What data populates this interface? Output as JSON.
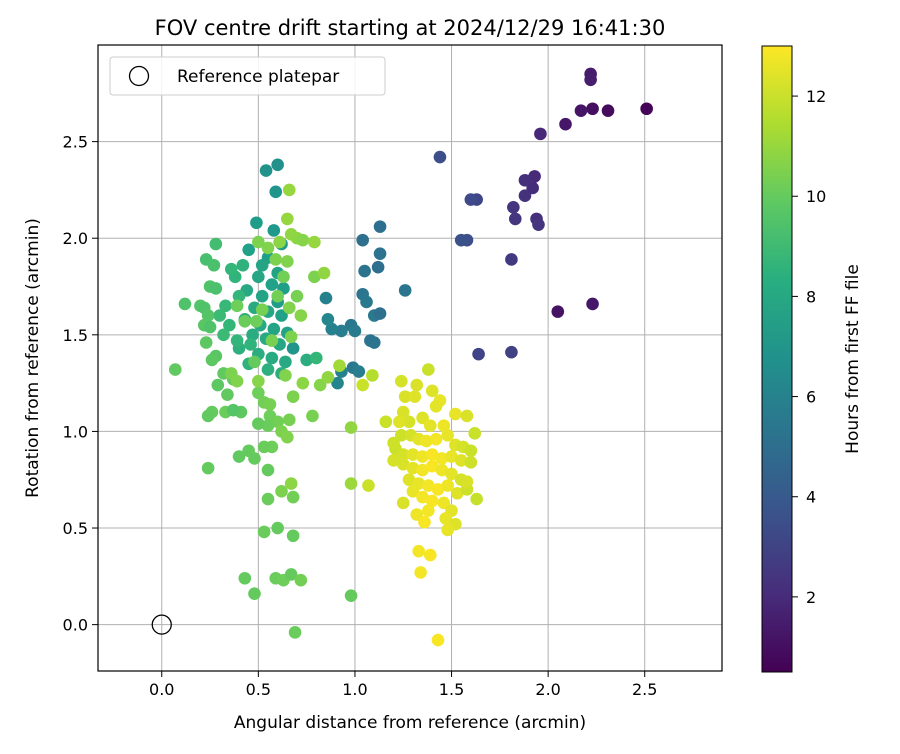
{
  "chart_data": {
    "type": "scatter",
    "title": "FOV centre drift starting at 2024/12/29 16:41:30",
    "xlabel": "Angular distance from reference (arcmin)",
    "ylabel": "Rotation from reference (arcmin)",
    "xlim": [
      -0.33,
      2.9
    ],
    "ylim": [
      -0.24,
      3.0
    ],
    "x_ticks": [
      0.0,
      0.5,
      1.0,
      1.5,
      2.0,
      2.5
    ],
    "x_tick_labels": [
      "0.0",
      "0.5",
      "1.0",
      "1.5",
      "2.0",
      "2.5"
    ],
    "y_ticks": [
      0.0,
      0.5,
      1.0,
      1.5,
      2.0,
      2.5
    ],
    "y_tick_labels": [
      "0.0",
      "0.5",
      "1.0",
      "1.5",
      "2.0",
      "2.5"
    ],
    "grid": true,
    "legend": {
      "placement": "top-left",
      "entries": [
        "Reference platepar"
      ]
    },
    "reference_point": {
      "x": 0.0,
      "y": 0.0,
      "marker": "hollow-circle"
    },
    "colorbar": {
      "label": "Hours from first FF file",
      "colormap": "viridis",
      "range": [
        0.5,
        13.0
      ],
      "ticks": [
        2,
        4,
        6,
        8,
        10,
        12
      ],
      "tick_labels": [
        "2",
        "4",
        "6",
        "8",
        "10",
        "12"
      ]
    },
    "points": [
      [
        2.51,
        2.67,
        0.6
      ],
      [
        2.31,
        2.66,
        0.9
      ],
      [
        2.23,
        2.67,
        1.0
      ],
      [
        2.17,
        2.66,
        1.2
      ],
      [
        2.22,
        2.85,
        1.4
      ],
      [
        2.22,
        2.82,
        1.5
      ],
      [
        2.09,
        2.59,
        1.3
      ],
      [
        2.05,
        1.62,
        1.1
      ],
      [
        2.23,
        1.66,
        1.3
      ],
      [
        1.96,
        2.54,
        1.9
      ],
      [
        1.93,
        2.32,
        2.0
      ],
      [
        1.92,
        2.26,
        2.1
      ],
      [
        1.88,
        2.3,
        2.2
      ],
      [
        1.88,
        2.22,
        2.3
      ],
      [
        1.82,
        2.16,
        2.4
      ],
      [
        1.83,
        2.1,
        2.5
      ],
      [
        1.94,
        2.1,
        2.2
      ],
      [
        1.95,
        2.07,
        2.4
      ],
      [
        1.81,
        1.89,
        2.6
      ],
      [
        1.81,
        1.41,
        2.9
      ],
      [
        1.64,
        1.4,
        3.0
      ],
      [
        1.63,
        2.2,
        3.1
      ],
      [
        1.6,
        2.2,
        3.3
      ],
      [
        1.58,
        1.99,
        3.5
      ],
      [
        1.55,
        1.99,
        3.6
      ],
      [
        1.44,
        2.42,
        3.5
      ],
      [
        1.13,
        2.06,
        5.0
      ],
      [
        1.13,
        1.92,
        5.2
      ],
      [
        1.12,
        1.85,
        5.0
      ],
      [
        1.04,
        1.99,
        5.1
      ],
      [
        1.05,
        1.83,
        5.3
      ],
      [
        1.04,
        1.71,
        5.4
      ],
      [
        1.06,
        1.67,
        5.5
      ],
      [
        1.1,
        1.6,
        5.6
      ],
      [
        1.13,
        1.61,
        5.1
      ],
      [
        1.26,
        1.73,
        5.4
      ],
      [
        1.08,
        1.47,
        5.2
      ],
      [
        1.1,
        1.46,
        5.3
      ],
      [
        0.98,
        1.55,
        5.5
      ],
      [
        1.0,
        1.52,
        5.7
      ],
      [
        0.93,
        1.52,
        5.8
      ],
      [
        0.88,
        1.53,
        6.0
      ],
      [
        0.85,
        1.69,
        6.0
      ],
      [
        0.86,
        1.58,
        6.3
      ],
      [
        0.99,
        1.33,
        5.5
      ],
      [
        1.02,
        1.31,
        5.8
      ],
      [
        0.93,
        1.31,
        6.0
      ],
      [
        0.91,
        1.25,
        6.2
      ],
      [
        0.6,
        2.38,
        6.8
      ],
      [
        0.54,
        2.35,
        6.9
      ],
      [
        0.59,
        2.24,
        7.0
      ],
      [
        0.49,
        2.08,
        7.4
      ],
      [
        0.58,
        2.04,
        7.2
      ],
      [
        0.62,
        1.97,
        7.3
      ],
      [
        0.45,
        1.94,
        7.6
      ],
      [
        0.55,
        1.9,
        7.5
      ],
      [
        0.52,
        1.86,
        7.8
      ],
      [
        0.6,
        1.82,
        7.7
      ],
      [
        0.5,
        1.8,
        7.9
      ],
      [
        0.57,
        1.76,
        7.6
      ],
      [
        0.63,
        1.74,
        7.5
      ],
      [
        0.44,
        1.73,
        8.0
      ],
      [
        0.52,
        1.7,
        7.8
      ],
      [
        0.6,
        1.67,
        7.4
      ],
      [
        0.48,
        1.64,
        8.1
      ],
      [
        0.55,
        1.62,
        7.9
      ],
      [
        0.62,
        1.6,
        7.6
      ],
      [
        0.43,
        1.58,
        8.3
      ],
      [
        0.51,
        1.55,
        8.0
      ],
      [
        0.58,
        1.53,
        7.8
      ],
      [
        0.65,
        1.51,
        7.7
      ],
      [
        0.47,
        1.5,
        8.2
      ],
      [
        0.54,
        1.48,
        8.0
      ],
      [
        0.61,
        1.45,
        7.9
      ],
      [
        0.68,
        1.43,
        7.0
      ],
      [
        0.4,
        1.43,
        8.4
      ],
      [
        0.5,
        1.4,
        8.3
      ],
      [
        0.57,
        1.38,
        8.1
      ],
      [
        0.64,
        1.36,
        8.0
      ],
      [
        0.45,
        1.35,
        8.5
      ],
      [
        0.55,
        1.32,
        8.4
      ],
      [
        0.62,
        1.3,
        8.3
      ],
      [
        0.38,
        1.8,
        8.6
      ],
      [
        0.4,
        1.7,
        8.7
      ],
      [
        0.42,
        1.86,
        8.5
      ],
      [
        0.36,
        1.84,
        8.8
      ],
      [
        0.33,
        1.65,
        8.9
      ],
      [
        0.3,
        1.6,
        9.0
      ],
      [
        0.32,
        1.5,
        9.0
      ],
      [
        0.35,
        1.55,
        8.8
      ],
      [
        0.39,
        1.47,
        8.7
      ],
      [
        0.46,
        1.45,
        8.6
      ],
      [
        0.75,
        1.37,
        8.3
      ],
      [
        0.8,
        1.38,
        8.8
      ],
      [
        0.28,
        1.97,
        9.2
      ],
      [
        0.23,
        1.89,
        9.3
      ],
      [
        0.27,
        1.86,
        9.4
      ],
      [
        0.25,
        1.75,
        9.5
      ],
      [
        0.28,
        1.74,
        9.4
      ],
      [
        0.2,
        1.65,
        9.6
      ],
      [
        0.22,
        1.64,
        9.5
      ],
      [
        0.24,
        1.6,
        9.6
      ],
      [
        0.22,
        1.55,
        9.7
      ],
      [
        0.23,
        1.46,
        9.8
      ],
      [
        0.25,
        1.54,
        9.5
      ],
      [
        0.28,
        1.39,
        9.7
      ],
      [
        0.26,
        1.37,
        9.8
      ],
      [
        0.32,
        1.3,
        9.9
      ],
      [
        0.29,
        1.24,
        9.8
      ],
      [
        0.37,
        1.27,
        10.0
      ],
      [
        0.34,
        1.19,
        9.9
      ],
      [
        0.26,
        1.1,
        10.0
      ],
      [
        0.24,
        1.08,
        9.9
      ],
      [
        0.33,
        1.1,
        10.1
      ],
      [
        0.41,
        1.1,
        9.8
      ],
      [
        0.37,
        1.11,
        9.6
      ],
      [
        0.07,
        1.32,
        9.9
      ],
      [
        0.12,
        1.66,
        9.5
      ],
      [
        0.48,
        1.36,
        10.0
      ],
      [
        0.5,
        1.2,
        10.2
      ],
      [
        0.53,
        1.15,
        10.3
      ],
      [
        0.56,
        1.14,
        10.4
      ],
      [
        0.56,
        1.08,
        10.2
      ],
      [
        0.6,
        1.05,
        10.3
      ],
      [
        0.66,
        1.06,
        10.4
      ],
      [
        0.62,
        1.0,
        10.5
      ],
      [
        0.65,
        0.97,
        10.6
      ],
      [
        0.55,
        1.03,
        10.1
      ],
      [
        0.5,
        1.04,
        10.0
      ],
      [
        0.57,
        0.92,
        10.2
      ],
      [
        0.53,
        0.92,
        10.1
      ],
      [
        0.45,
        0.9,
        10.0
      ],
      [
        0.4,
        0.87,
        9.9
      ],
      [
        0.48,
        0.86,
        10.0
      ],
      [
        0.24,
        0.81,
        10.0
      ],
      [
        0.55,
        0.8,
        10.0
      ],
      [
        0.67,
        0.73,
        10.8
      ],
      [
        0.62,
        0.69,
        10.5
      ],
      [
        0.68,
        0.66,
        10.3
      ],
      [
        0.55,
        0.65,
        10.1
      ],
      [
        0.6,
        0.5,
        10.0
      ],
      [
        0.53,
        0.48,
        10.1
      ],
      [
        0.68,
        0.46,
        10.0
      ],
      [
        0.43,
        0.24,
        10.0
      ],
      [
        0.59,
        0.24,
        10.1
      ],
      [
        0.63,
        0.23,
        10.2
      ],
      [
        0.67,
        0.26,
        10.0
      ],
      [
        0.72,
        0.23,
        10.3
      ],
      [
        0.48,
        0.16,
        10.0
      ],
      [
        0.98,
        0.15,
        10.0
      ],
      [
        0.69,
        -0.04,
        10.1
      ],
      [
        0.78,
        1.08,
        10.4
      ],
      [
        0.73,
        1.25,
        10.8
      ],
      [
        0.82,
        1.24,
        10.7
      ],
      [
        0.86,
        1.28,
        10.9
      ],
      [
        0.92,
        1.34,
        11.2
      ],
      [
        0.98,
        1.02,
        10.9
      ],
      [
        0.98,
        0.73,
        11.1
      ],
      [
        0.66,
        2.25,
        11.0
      ],
      [
        0.65,
        2.1,
        11.0
      ],
      [
        0.67,
        2.02,
        10.9
      ],
      [
        0.7,
        2.0,
        10.8
      ],
      [
        0.73,
        1.99,
        10.7
      ],
      [
        0.61,
        1.98,
        10.8
      ],
      [
        0.55,
        1.95,
        10.6
      ],
      [
        0.5,
        1.98,
        10.5
      ],
      [
        0.59,
        1.89,
        10.5
      ],
      [
        0.65,
        1.88,
        10.6
      ],
      [
        0.79,
        1.98,
        11.0
      ],
      [
        0.79,
        1.8,
        10.5
      ],
      [
        0.63,
        1.8,
        10.3
      ],
      [
        0.7,
        1.7,
        10.4
      ],
      [
        0.6,
        1.7,
        10.3
      ],
      [
        0.52,
        1.63,
        10.4
      ],
      [
        0.66,
        1.64,
        10.6
      ],
      [
        0.72,
        1.6,
        10.7
      ],
      [
        0.84,
        1.82,
        10.9
      ],
      [
        0.49,
        1.57,
        10.2
      ],
      [
        0.43,
        1.57,
        10.1
      ],
      [
        0.39,
        1.65,
        10.2
      ],
      [
        0.67,
        1.49,
        10.5
      ],
      [
        0.57,
        1.47,
        10.4
      ],
      [
        0.36,
        1.3,
        10.5
      ],
      [
        0.39,
        1.26,
        10.6
      ],
      [
        0.5,
        1.26,
        10.7
      ],
      [
        0.64,
        1.29,
        10.6
      ],
      [
        0.68,
        1.18,
        10.5
      ],
      [
        1.04,
        1.24,
        12.0
      ],
      [
        1.09,
        1.29,
        11.6
      ],
      [
        1.24,
        1.26,
        12.2
      ],
      [
        1.32,
        1.24,
        12.3
      ],
      [
        1.4,
        1.21,
        12.4
      ],
      [
        1.38,
        1.32,
        12.0
      ],
      [
        1.26,
        1.18,
        12.3
      ],
      [
        1.31,
        1.18,
        12.4
      ],
      [
        1.44,
        1.16,
        12.6
      ],
      [
        1.42,
        1.13,
        12.5
      ],
      [
        1.25,
        1.1,
        12.3
      ],
      [
        1.28,
        1.05,
        12.2
      ],
      [
        1.35,
        1.07,
        12.4
      ],
      [
        1.39,
        1.03,
        12.5
      ],
      [
        1.46,
        1.03,
        12.7
      ],
      [
        1.52,
        1.09,
        12.6
      ],
      [
        1.58,
        1.08,
        12.3
      ],
      [
        1.23,
        1.05,
        12.4
      ],
      [
        1.24,
        0.98,
        12.1
      ],
      [
        1.29,
        0.98,
        12.2
      ],
      [
        1.33,
        0.96,
        12.5
      ],
      [
        1.37,
        0.95,
        12.7
      ],
      [
        1.42,
        0.96,
        12.8
      ],
      [
        1.48,
        0.98,
        12.6
      ],
      [
        1.52,
        0.93,
        12.4
      ],
      [
        1.56,
        0.92,
        12.2
      ],
      [
        1.6,
        0.9,
        12.0
      ],
      [
        1.21,
        0.91,
        12.0
      ],
      [
        1.25,
        0.88,
        12.2
      ],
      [
        1.3,
        0.88,
        12.5
      ],
      [
        1.35,
        0.87,
        12.7
      ],
      [
        1.4,
        0.88,
        12.9
      ],
      [
        1.45,
        0.86,
        12.8
      ],
      [
        1.5,
        0.87,
        12.6
      ],
      [
        1.55,
        0.85,
        12.4
      ],
      [
        1.6,
        0.84,
        12.1
      ],
      [
        1.25,
        0.83,
        12.3
      ],
      [
        1.3,
        0.81,
        12.5
      ],
      [
        1.35,
        0.8,
        12.8
      ],
      [
        1.4,
        0.82,
        12.9
      ],
      [
        1.45,
        0.8,
        12.7
      ],
      [
        1.5,
        0.78,
        12.5
      ],
      [
        1.55,
        0.75,
        12.2
      ],
      [
        1.28,
        0.75,
        12.4
      ],
      [
        1.33,
        0.73,
        12.6
      ],
      [
        1.38,
        0.72,
        12.8
      ],
      [
        1.43,
        0.7,
        12.9
      ],
      [
        1.48,
        0.72,
        12.7
      ],
      [
        1.53,
        0.68,
        12.4
      ],
      [
        1.58,
        0.7,
        12.1
      ],
      [
        1.63,
        0.65,
        11.9
      ],
      [
        1.3,
        0.69,
        12.6
      ],
      [
        1.35,
        0.66,
        12.8
      ],
      [
        1.4,
        0.64,
        12.9
      ],
      [
        1.46,
        0.63,
        12.7
      ],
      [
        1.5,
        0.59,
        12.5
      ],
      [
        1.38,
        0.59,
        12.8
      ],
      [
        1.25,
        0.63,
        12.3
      ],
      [
        1.32,
        0.57,
        12.7
      ],
      [
        1.36,
        0.53,
        12.9
      ],
      [
        1.47,
        0.55,
        12.6
      ],
      [
        1.52,
        0.52,
        12.4
      ],
      [
        1.48,
        0.49,
        12.6
      ],
      [
        1.33,
        0.38,
        12.8
      ],
      [
        1.39,
        0.36,
        12.9
      ],
      [
        1.34,
        0.27,
        12.8
      ],
      [
        1.43,
        -0.08,
        12.9
      ],
      [
        1.07,
        0.72,
        12.0
      ],
      [
        1.16,
        1.05,
        12.0
      ],
      [
        1.2,
        0.94,
        12.1
      ],
      [
        1.2,
        0.85,
        12.2
      ],
      [
        1.62,
        0.99,
        12.0
      ],
      [
        1.58,
        0.74,
        12.3
      ]
    ]
  }
}
